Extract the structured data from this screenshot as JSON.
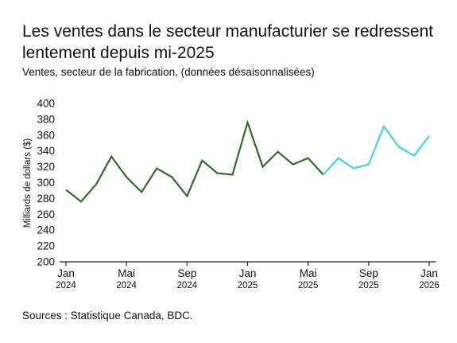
{
  "chart_data": {
    "type": "line",
    "title": "Les ventes dans le secteur manufacturier se redressent lentement depuis mi-2025",
    "subtitle": "Ventes, secteur de la fabrication, (données désaisonnalisées)",
    "ylabel": "Milliards de dollars ($)",
    "xlabel": "",
    "ylim": [
      200,
      400
    ],
    "yticks": [
      200,
      220,
      240,
      260,
      280,
      300,
      320,
      340,
      360,
      380,
      400
    ],
    "grid": false,
    "x_ticks": [
      {
        "month": "Jan",
        "year": "2024",
        "index": 0
      },
      {
        "month": "Mai",
        "year": "2024",
        "index": 4
      },
      {
        "month": "Sep",
        "year": "2024",
        "index": 8
      },
      {
        "month": "Jan",
        "year": "2025",
        "index": 12
      },
      {
        "month": "Mai",
        "year": "2025",
        "index": 16
      },
      {
        "month": "Sep",
        "year": "2025",
        "index": 20
      },
      {
        "month": "Jan",
        "year": "2026",
        "index": 24
      }
    ],
    "x": [
      "2024-01",
      "2024-02",
      "2024-03",
      "2024-04",
      "2024-05",
      "2024-06",
      "2024-07",
      "2024-08",
      "2024-09",
      "2024-10",
      "2024-11",
      "2024-12",
      "2025-01",
      "2025-02",
      "2025-03",
      "2025-04",
      "2025-05",
      "2025-06",
      "2025-07",
      "2025-08",
      "2025-09",
      "2025-10",
      "2025-11",
      "2025-12",
      "2026-01"
    ],
    "series": [
      {
        "color": "#2e6b2a",
        "x": [
          "2024-01",
          "2024-02",
          "2024-03",
          "2024-04",
          "2024-05",
          "2024-06",
          "2024-07",
          "2024-08",
          "2024-09",
          "2024-10",
          "2024-11",
          "2024-12",
          "2025-01",
          "2025-02",
          "2025-03",
          "2025-04",
          "2025-05",
          "2025-06"
        ],
        "values": [
          291,
          276,
          298,
          333,
          307,
          288,
          318,
          307,
          283,
          328,
          312,
          310,
          376,
          320,
          339,
          323,
          331,
          310
        ]
      },
      {
        "color": "#3fd4d8",
        "x": [
          "2025-06",
          "2025-07",
          "2025-08",
          "2025-09",
          "2025-10",
          "2025-11",
          "2025-12",
          "2026-01"
        ],
        "values": [
          310,
          331,
          318,
          323,
          371,
          345,
          334,
          359
        ]
      }
    ]
  },
  "source": "Sources : Statistique Canada, BDC."
}
